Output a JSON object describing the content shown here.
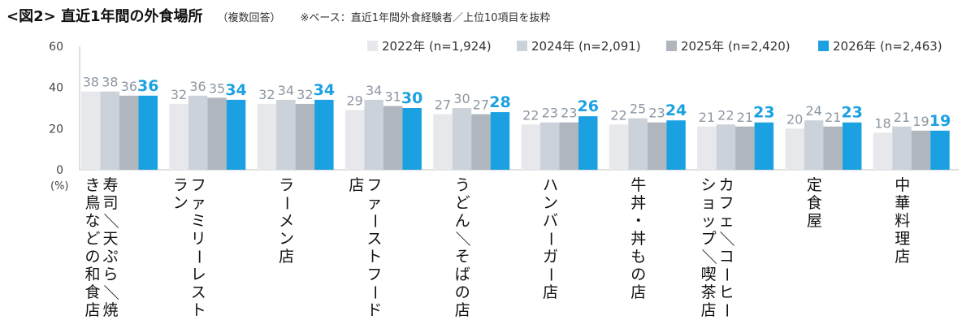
{
  "title": "<図2> 直近1年間の外食場所",
  "subtitle": "（複数回答）",
  "base_note": "※ベース：直近1年間外食経験者／上位10項目を抜粋",
  "colors": {
    "series": [
      "#e6e8ec",
      "#cbd2da",
      "#afb6be",
      "#1ba1e2"
    ],
    "accent_label": "#1ba1e2",
    "value_label": "#8c97a3"
  },
  "chart_data": {
    "type": "bar",
    "ylabel": "(%)",
    "ylim": [
      0,
      60
    ],
    "yticks": [
      0,
      20,
      40,
      60
    ],
    "grid": false,
    "legend_position": "top-right",
    "categories": [
      "寿司／天ぷら／焼き鳥などの和食店",
      "ファミリーレストラン",
      "ラーメン店",
      "ファーストフード店",
      "うどん／そばの店",
      "ハンバーガー店",
      "牛丼・丼もの店",
      "カフェ／コーヒーショップ／喫茶店",
      "定食屋",
      "中華料理店"
    ],
    "series": [
      {
        "name": "2022年 (n=1,924)",
        "values": [
          38,
          32,
          32,
          29,
          27,
          22,
          22,
          21,
          20,
          18
        ]
      },
      {
        "name": "2024年 (n=2,091)",
        "values": [
          38,
          36,
          34,
          34,
          30,
          23,
          25,
          22,
          24,
          21
        ]
      },
      {
        "name": "2025年 (n=2,420)",
        "values": [
          36,
          35,
          32,
          31,
          27,
          23,
          23,
          21,
          21,
          19
        ]
      },
      {
        "name": "2026年 (n=2,463)",
        "values": [
          36,
          34,
          34,
          30,
          28,
          26,
          24,
          23,
          23,
          19
        ]
      }
    ]
  }
}
